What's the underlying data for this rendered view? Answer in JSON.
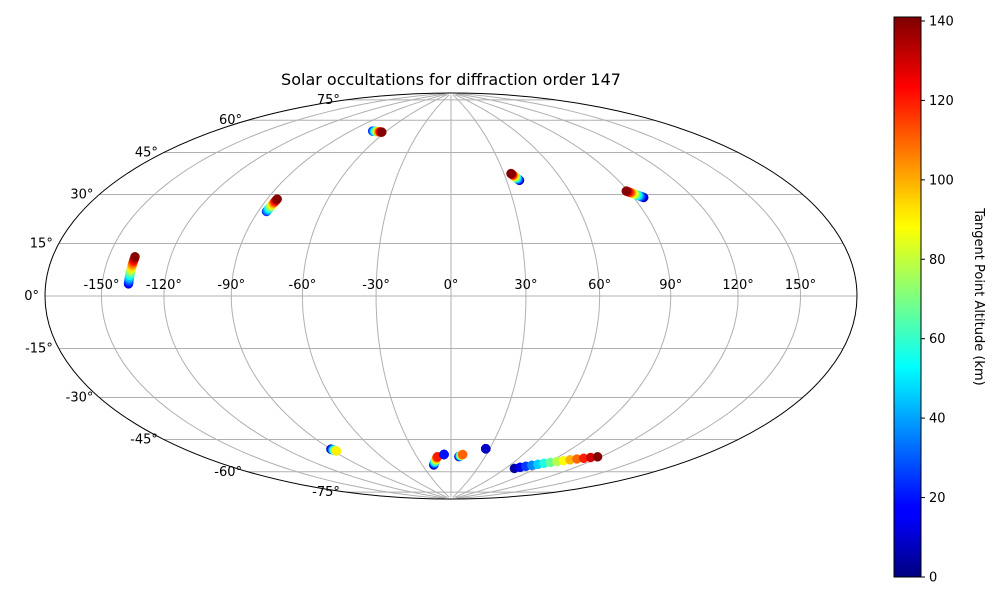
{
  "chart_data": {
    "type": "scatter",
    "projection": "aitoff-hammer",
    "title": "Solar occultations for diffraction order 147",
    "lon_ticks": [
      "-150°",
      "-120°",
      "-90°",
      "-60°",
      "-30°",
      "0°",
      "30°",
      "60°",
      "90°",
      "120°",
      "150°"
    ],
    "lat_ticks": [
      "75°",
      "60°",
      "45°",
      "30°",
      "15°",
      "0°",
      "-15°",
      "-30°",
      "-45°",
      "-60°",
      "-75°"
    ],
    "lon_tick_values": [
      -150,
      -120,
      -90,
      -60,
      -30,
      0,
      30,
      60,
      90,
      120,
      150
    ],
    "lat_tick_values": [
      75,
      60,
      45,
      30,
      15,
      0,
      -15,
      -30,
      -45,
      -60,
      -75
    ],
    "grid": true,
    "colorbar": {
      "label": "Tangent Point Altitude (km)",
      "range": [
        0,
        141
      ],
      "colormap": "jet",
      "ticks": [
        "0",
        "20",
        "40",
        "60",
        "80",
        "100",
        "120",
        "140"
      ],
      "tick_values": [
        0,
        20,
        40,
        60,
        80,
        100,
        120,
        140
      ]
    },
    "occultations": [
      {
        "start_lon": -137,
        "start_lat": 4,
        "end_lon": -137,
        "end_lat": 13,
        "alt_start": 15,
        "alt_end": 140
      },
      {
        "start_lon": -86,
        "start_lat": 32,
        "end_lon": -85,
        "end_lat": 37,
        "alt_start": 25,
        "alt_end": 140
      },
      {
        "start_lon": -72,
        "start_lat": 68,
        "end_lon": -63,
        "end_lat": 68,
        "alt_start": 20,
        "alt_end": 140
      },
      {
        "start_lon": 37,
        "start_lat": 47,
        "end_lon": 34,
        "end_lat": 50,
        "alt_start": 5,
        "alt_end": 140
      },
      {
        "start_lon": 95,
        "start_lat": 37,
        "end_lon": 89,
        "end_lat": 40,
        "alt_start": 5,
        "alt_end": 140
      },
      {
        "start_lon": -90,
        "start_lat": -61,
        "end_lon": -88,
        "end_lat": -62,
        "alt_start": 5,
        "alt_end": 90
      },
      {
        "start_lon": -18,
        "start_lat": -72,
        "end_lon": -12,
        "end_lat": -68,
        "alt_start": 5,
        "alt_end": 120
      },
      {
        "start_lon": -6,
        "start_lat": -67,
        "end_lon": -6,
        "end_lat": -67,
        "alt_start": 5,
        "alt_end": 20
      },
      {
        "start_lon": 7,
        "start_lat": -68,
        "end_lon": 10,
        "end_lat": -67,
        "alt_start": 5,
        "alt_end": 110
      },
      {
        "start_lon": 27,
        "start_lat": -64,
        "end_lon": 27,
        "end_lat": -64,
        "alt_start": 5,
        "alt_end": 10
      },
      {
        "start_lon": 69,
        "start_lat": -72,
        "end_lon": 118,
        "end_lat": -62,
        "alt_start": 5,
        "alt_end": 140
      }
    ]
  }
}
